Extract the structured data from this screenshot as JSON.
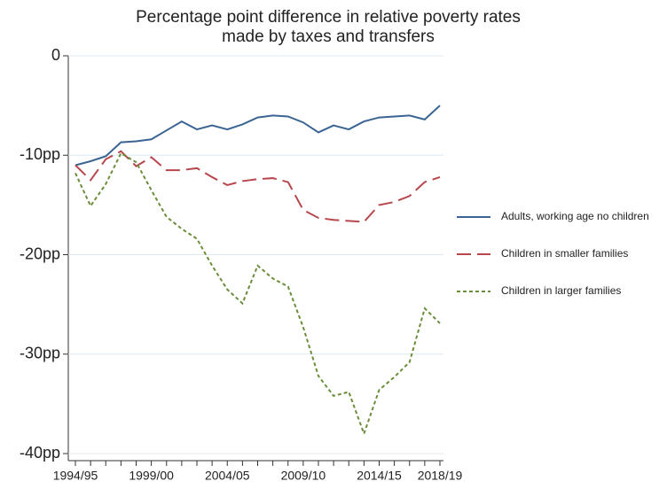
{
  "chart_data": {
    "type": "line",
    "title": [
      "Percentage point difference in relative poverty rates",
      "made by taxes and transfers"
    ],
    "categories": [
      "1994/95",
      null,
      null,
      null,
      null,
      "1999/00",
      null,
      null,
      null,
      null,
      "2004/05",
      null,
      null,
      null,
      null,
      "2009/10",
      null,
      null,
      null,
      null,
      "2014/15",
      null,
      null,
      null,
      "2018/19"
    ],
    "series": [
      {
        "name": "Adults, working age no children",
        "color": "#3a6593",
        "dash": "solid",
        "values": [
          -11.0,
          -10.6,
          -10.1,
          -8.7,
          -8.6,
          -8.4,
          -7.5,
          -6.6,
          -7.4,
          -7.0,
          -7.4,
          -6.9,
          -6.2,
          -6.0,
          -6.1,
          -6.7,
          -7.7,
          -7.0,
          -7.4,
          -6.6,
          -6.2,
          -6.1,
          -6.0,
          -6.4,
          -5.0
        ]
      },
      {
        "name": "Children in smaller families",
        "color": "#b7474d",
        "dash": "dashed",
        "values": [
          -11.0,
          -12.5,
          -10.4,
          -9.6,
          -11.1,
          -10.2,
          -11.5,
          -11.5,
          -11.3,
          -12.2,
          -13.0,
          -12.6,
          -12.4,
          -12.3,
          -12.7,
          -15.5,
          -16.3,
          -16.5,
          -16.6,
          -16.7,
          -15.0,
          -14.7,
          -14.1,
          -12.7,
          -12.2
        ]
      },
      {
        "name": "Children in larger families",
        "color": "#6b8e3a",
        "dash": "dotted",
        "values": [
          -11.8,
          -15.1,
          -12.9,
          -9.8,
          -10.7,
          -13.5,
          -16.2,
          -17.4,
          -18.4,
          -21.1,
          -23.5,
          -24.9,
          -21.1,
          -22.4,
          -23.2,
          -27.3,
          -32.2,
          -34.2,
          -33.8,
          -38.0,
          -33.6,
          -32.3,
          -30.8,
          -25.4,
          -26.9
        ]
      }
    ],
    "ylim": [
      -40,
      0
    ],
    "yticks": [
      {
        "value": -40,
        "label": "-40pp"
      },
      {
        "value": -30,
        "label": "-30pp"
      },
      {
        "value": -20,
        "label": "-20pp"
      },
      {
        "value": -10,
        "label": "-10pp"
      },
      0
    ],
    "grid": true,
    "legend": "right"
  }
}
